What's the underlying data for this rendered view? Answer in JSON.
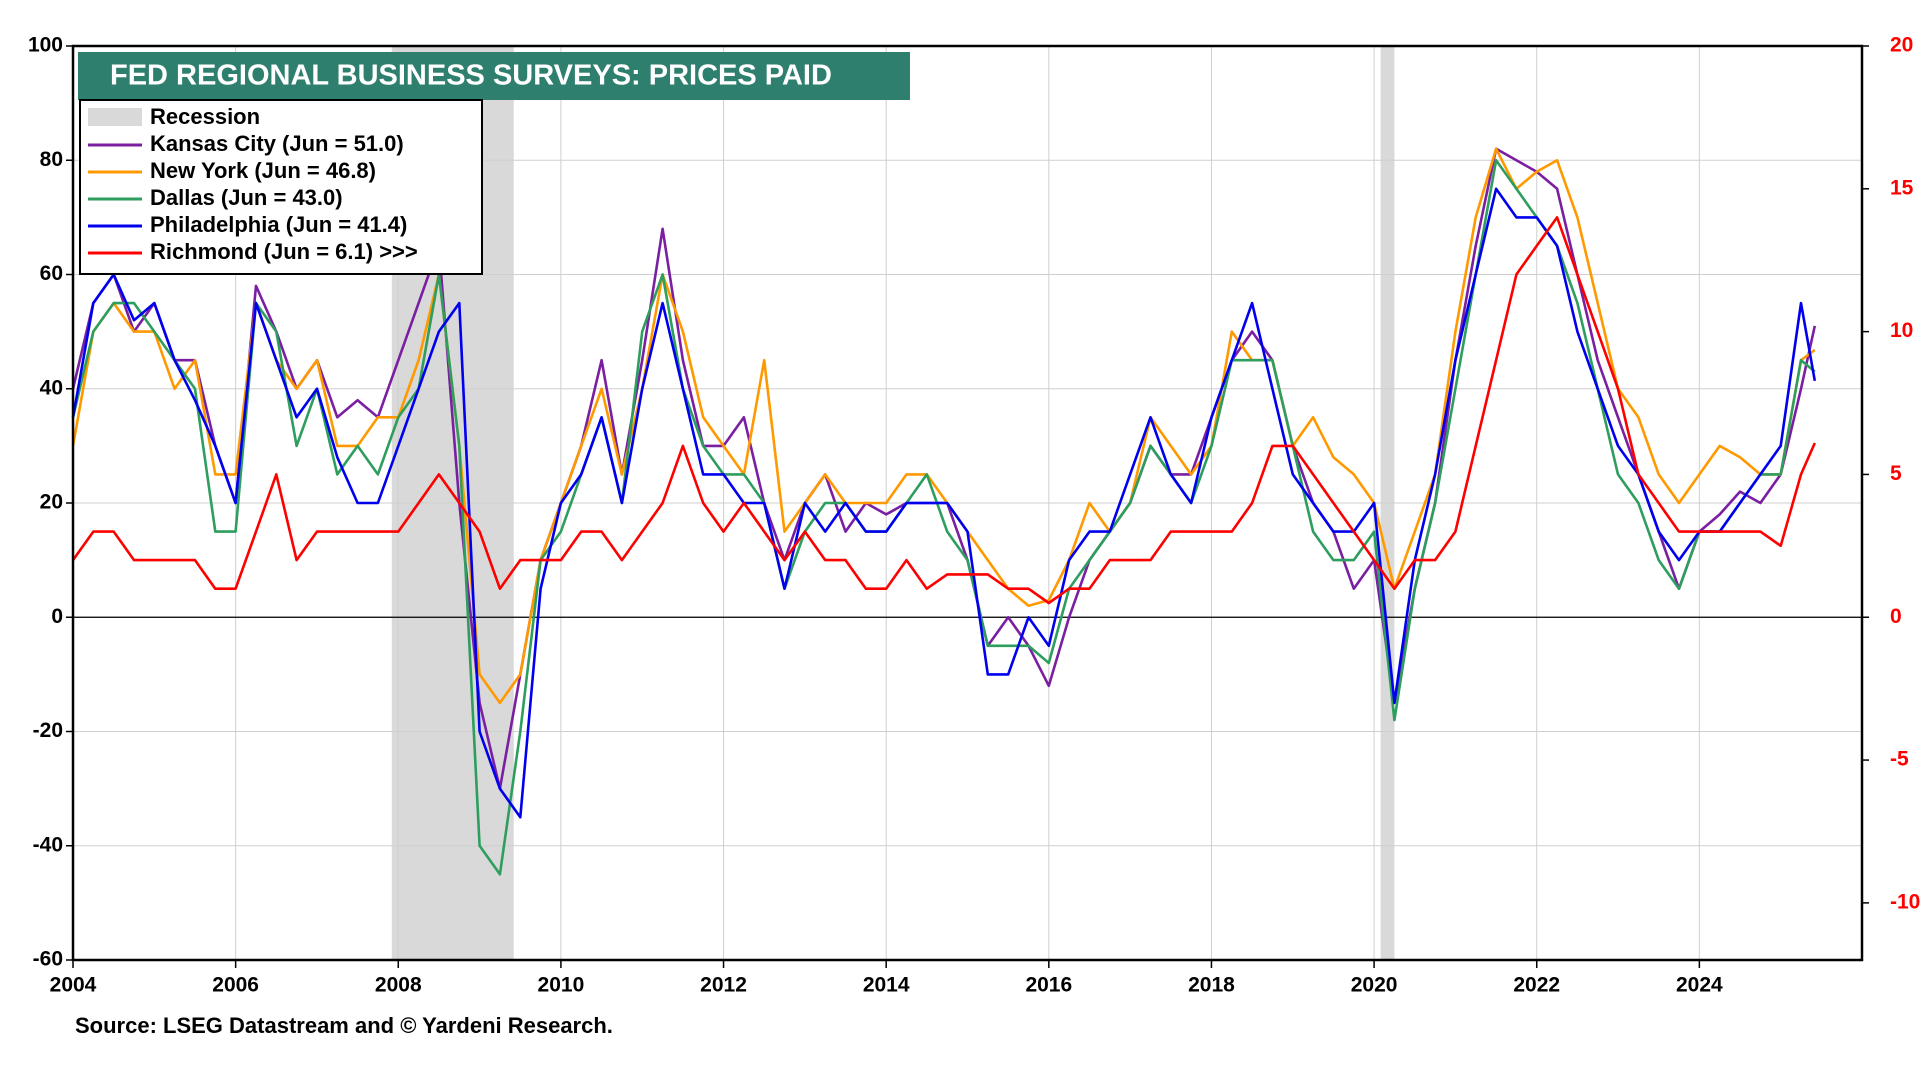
{
  "chart_data": {
    "type": "line",
    "title": "FED REGIONAL BUSINESS SURVEYS: PRICES PAID",
    "source": "Source: LSEG Datastream and © Yardeni Research.",
    "recession_label": "Recession",
    "recessions": [
      [
        2007.92,
        2009.42
      ],
      [
        2020.08,
        2020.25
      ]
    ],
    "xlim": [
      2004,
      2026
    ],
    "xticks": [
      2004,
      2006,
      2008,
      2010,
      2012,
      2014,
      2016,
      2018,
      2020,
      2022,
      2024
    ],
    "ylim": [
      -60,
      100
    ],
    "yticks": [
      -60,
      -40,
      -20,
      0,
      20,
      40,
      60,
      80,
      100
    ],
    "y2lim": [
      -12,
      20
    ],
    "y2ticks": [
      -10,
      -5,
      0,
      5,
      10,
      15,
      20
    ],
    "y2_color": "#ff0000",
    "grid": true,
    "legend": "upper left",
    "x": [
      2004,
      2004.25,
      2004.5,
      2004.75,
      2005,
      2005.25,
      2005.5,
      2005.75,
      2006,
      2006.25,
      2006.5,
      2006.75,
      2007,
      2007.25,
      2007.5,
      2007.75,
      2008,
      2008.25,
      2008.5,
      2008.75,
      2009,
      2009.25,
      2009.5,
      2009.75,
      2010,
      2010.25,
      2010.5,
      2010.75,
      2011,
      2011.25,
      2011.5,
      2011.75,
      2012,
      2012.25,
      2012.5,
      2012.75,
      2013,
      2013.25,
      2013.5,
      2013.75,
      2014,
      2014.25,
      2014.5,
      2014.75,
      2015,
      2015.25,
      2015.5,
      2015.75,
      2016,
      2016.25,
      2016.5,
      2016.75,
      2017,
      2017.25,
      2017.5,
      2017.75,
      2018,
      2018.25,
      2018.5,
      2018.75,
      2019,
      2019.25,
      2019.5,
      2019.75,
      2020,
      2020.25,
      2020.5,
      2020.75,
      2021,
      2021.25,
      2021.5,
      2021.75,
      2022,
      2022.25,
      2022.5,
      2022.75,
      2023,
      2023.25,
      2023.5,
      2023.75,
      2024,
      2024.25,
      2024.5,
      2024.75,
      2025,
      2025.25,
      2025.42
    ],
    "series": [
      {
        "name": "Kansas City (Jun = 51.0)",
        "color": "#7b1fa2",
        "values": [
          40,
          55,
          60,
          50,
          55,
          45,
          45,
          30,
          20,
          58,
          50,
          40,
          45,
          35,
          38,
          35,
          45,
          55,
          65,
          20,
          -15,
          -30,
          -10,
          10,
          20,
          30,
          45,
          25,
          45,
          68,
          45,
          30,
          30,
          35,
          20,
          10,
          20,
          25,
          15,
          20,
          18,
          20,
          20,
          20,
          10,
          -5,
          0,
          -5,
          -12,
          0,
          10,
          15,
          20,
          30,
          25,
          25,
          35,
          45,
          50,
          45,
          30,
          20,
          15,
          5,
          10,
          -15,
          5,
          20,
          45,
          65,
          82,
          80,
          78,
          75,
          60,
          45,
          35,
          25,
          15,
          5,
          15,
          18,
          22,
          20,
          25,
          40,
          51
        ]
      },
      {
        "name": "New York (Jun = 46.8)",
        "color": "#ff9900",
        "values": [
          30,
          50,
          55,
          50,
          50,
          40,
          45,
          25,
          25,
          55,
          45,
          40,
          45,
          30,
          30,
          35,
          35,
          45,
          60,
          30,
          -10,
          -15,
          -10,
          10,
          20,
          30,
          40,
          25,
          40,
          60,
          50,
          35,
          30,
          25,
          45,
          15,
          20,
          25,
          20,
          20,
          20,
          25,
          25,
          20,
          15,
          10,
          5,
          2,
          3,
          10,
          20,
          15,
          20,
          35,
          30,
          25,
          30,
          50,
          45,
          45,
          30,
          35,
          28,
          25,
          20,
          5,
          15,
          25,
          50,
          70,
          82,
          75,
          78,
          80,
          70,
          55,
          40,
          35,
          25,
          20,
          25,
          30,
          28,
          25,
          25,
          45,
          46.8
        ]
      },
      {
        "name": "Dallas (Jun = 43.0)",
        "color": "#2e9e5e",
        "values": [
          35,
          50,
          55,
          55,
          50,
          45,
          40,
          15,
          15,
          55,
          50,
          30,
          40,
          25,
          30,
          25,
          35,
          40,
          60,
          30,
          -40,
          -45,
          -20,
          10,
          15,
          25,
          35,
          20,
          50,
          60,
          40,
          30,
          25,
          25,
          20,
          5,
          15,
          20,
          20,
          15,
          15,
          20,
          25,
          15,
          10,
          -5,
          -5,
          -5,
          -8,
          5,
          10,
          15,
          20,
          30,
          25,
          20,
          30,
          45,
          45,
          45,
          30,
          15,
          10,
          10,
          15,
          -18,
          5,
          20,
          40,
          60,
          80,
          75,
          70,
          65,
          55,
          40,
          25,
          20,
          10,
          5,
          15,
          15,
          20,
          25,
          25,
          45,
          43
        ]
      },
      {
        "name": "Philadelphia (Jun = 41.4)",
        "color": "#0000ee",
        "values": [
          35,
          55,
          60,
          52,
          55,
          45,
          38,
          30,
          20,
          55,
          45,
          35,
          40,
          28,
          20,
          20,
          30,
          40,
          50,
          55,
          -20,
          -30,
          -35,
          5,
          20,
          25,
          35,
          20,
          40,
          55,
          40,
          25,
          25,
          20,
          20,
          5,
          20,
          15,
          20,
          15,
          15,
          20,
          20,
          20,
          15,
          -10,
          -10,
          0,
          -5,
          10,
          15,
          15,
          25,
          35,
          25,
          20,
          35,
          45,
          55,
          40,
          25,
          20,
          15,
          15,
          20,
          -15,
          10,
          25,
          45,
          60,
          75,
          70,
          70,
          65,
          50,
          40,
          30,
          25,
          15,
          10,
          15,
          15,
          20,
          25,
          30,
          55,
          41.4
        ]
      },
      {
        "name": "Richmond (Jun = 6.1) >>>",
        "color": "#ff0000",
        "axis": "y2",
        "values": [
          2,
          3,
          3,
          2,
          2,
          2,
          2,
          1,
          1,
          3,
          5,
          2,
          3,
          3,
          3,
          3,
          3,
          4,
          5,
          4,
          3,
          1,
          2,
          2,
          2,
          3,
          3,
          2,
          3,
          4,
          6,
          4,
          3,
          4,
          3,
          2,
          3,
          2,
          2,
          1,
          1,
          2,
          1,
          1.5,
          1.5,
          1.5,
          1,
          1,
          0.5,
          1,
          1,
          2,
          2,
          2,
          3,
          3,
          3,
          3,
          4,
          6,
          6,
          5,
          4,
          3,
          2,
          1,
          2,
          2,
          3,
          6,
          9,
          12,
          13,
          14,
          12,
          10,
          8,
          5,
          4,
          3,
          3,
          3,
          3,
          3,
          2.5,
          5,
          6.1
        ]
      }
    ]
  }
}
